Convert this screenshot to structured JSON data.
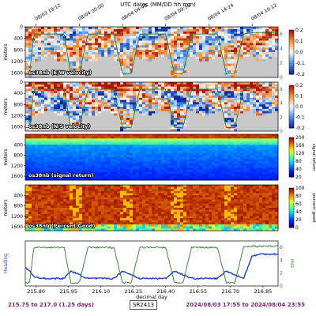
{
  "header": {
    "title": "UTC dates (MM/DD hh:mm)",
    "date_ticks": [
      "08/03 19:12",
      "08/04 00:00",
      "08/04 04:48",
      "08/04 09:36",
      "08/04 14:24",
      "08/04 19:12"
    ],
    "date_tick_days": [
      215.8,
      216.0,
      216.2,
      216.4,
      216.6,
      216.8
    ]
  },
  "footer": {
    "range": "215.75 to 217.0 (1.25 days)",
    "cruise": "SR2413",
    "dates": "2024/08/03 17:55 to 2024/08/04 23:55"
  },
  "colors": {
    "heading": "#1f3fbf",
    "speed": "#2a7a2a",
    "purple": "#7a1f6e",
    "nodata": "#c8c8c8"
  },
  "chart_data": [
    {
      "type": "heatmap",
      "label": "os38nb (E/W velocity)",
      "ylabel": "meters",
      "yticks": [
        0,
        400,
        800,
        1200,
        1600
      ],
      "ylim": [
        1750,
        0
      ],
      "colorbar_ticks": [
        "0.2",
        "0.1",
        "0.0",
        "-0.1",
        "-0.2"
      ],
      "colorbar_range": [
        -0.2,
        0.2
      ],
      "speed_ticks": [
        "6",
        "4",
        "2",
        "0"
      ],
      "speed_ylabel": "m/s",
      "colormap": "diverging"
    },
    {
      "type": "heatmap",
      "label": "os38nb (N/S velocity)",
      "ylabel": "meters",
      "yticks": [
        0,
        400,
        800,
        1200,
        1600
      ],
      "ylim": [
        1750,
        0
      ],
      "colorbar_ticks": [
        "0.2",
        "0.1",
        "0.0",
        "-0.1",
        "-0.2"
      ],
      "colorbar_range": [
        -0.2,
        0.2
      ],
      "speed_ticks": [
        "6",
        "4",
        "2",
        "0"
      ],
      "speed_ylabel": "m/s",
      "colormap": "diverging"
    },
    {
      "type": "heatmap",
      "label": "os38nb (signal return)",
      "ylabel": "meters",
      "yticks": [
        400,
        800,
        1200,
        1600
      ],
      "ylim": [
        1750,
        0
      ],
      "colorbar_ticks": [
        "200",
        "160",
        "120",
        "80",
        "40",
        "20"
      ],
      "colorbar_range": [
        20,
        200
      ],
      "colorbar_label": "signal return",
      "colormap": "jet"
    },
    {
      "type": "heatmap",
      "label": "os38nb (Percent Good)",
      "ylabel": "meters",
      "yticks": [
        400,
        800,
        1200,
        1600
      ],
      "ylim": [
        1750,
        0
      ],
      "colorbar_ticks": [
        "100",
        "80",
        "60",
        "40",
        "20",
        "0"
      ],
      "colorbar_range": [
        0,
        100
      ],
      "colorbar_label": "percent good",
      "colormap": "jet"
    },
    {
      "type": "line",
      "x": [
        215.75,
        215.77,
        215.79,
        215.83,
        215.87,
        215.9,
        215.93,
        215.96,
        216.0,
        216.04,
        216.08,
        216.12,
        216.16,
        216.2,
        216.24,
        216.28,
        216.32,
        216.36,
        216.4,
        216.44,
        216.48,
        216.52,
        216.56,
        216.6,
        216.64,
        216.68,
        216.72,
        216.76,
        216.8,
        216.84,
        216.88,
        216.9
      ],
      "xlabel": "decimal day",
      "xticks": [
        215.8,
        215.95,
        216.1,
        216.25,
        216.4,
        216.55,
        216.7,
        216.85
      ],
      "xlim": [
        215.75,
        216.92
      ],
      "series": [
        {
          "name": "Heading",
          "values": [
            -10,
            -20,
            -35,
            -40,
            -40,
            -40,
            -40,
            -20,
            -30,
            -40,
            -40,
            -40,
            -40,
            -20,
            -30,
            -40,
            -40,
            -40,
            -40,
            -20,
            -30,
            -40,
            -40,
            -40,
            -40,
            -20,
            -30,
            -40,
            20,
            25,
            25,
            25
          ]
        },
        {
          "name": "speed",
          "values": [
            0.5,
            0.5,
            6,
            6,
            6,
            6,
            6,
            0.5,
            0.5,
            6,
            6,
            6,
            6,
            0.5,
            0.5,
            6,
            6,
            6,
            6,
            0.5,
            0.5,
            6,
            6,
            6,
            6,
            0.5,
            0.5,
            6,
            6.2,
            6.2,
            6.2,
            6.2
          ]
        }
      ],
      "speed_ticks": [
        "6",
        "4",
        "2",
        "0"
      ],
      "speed_ylabel": "m/s"
    }
  ]
}
